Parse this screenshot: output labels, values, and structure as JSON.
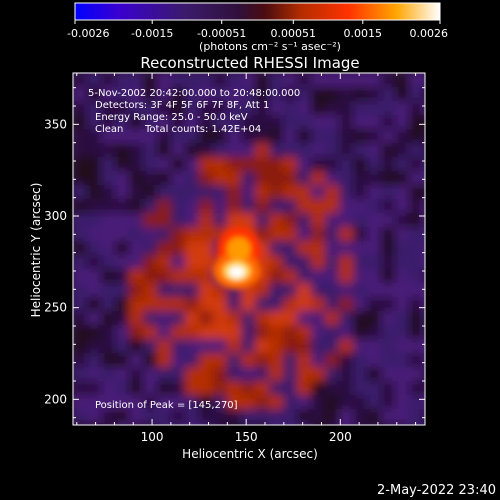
{
  "chart_data": {
    "type": "heatmap",
    "title": "Reconstructed RHESSI Image",
    "xlabel": "Heliocentric X (arcsec)",
    "ylabel": "Heliocentric Y (arcsec)",
    "xticks": [
      100,
      150,
      200
    ],
    "yticks": [
      200,
      250,
      300,
      350
    ],
    "xlim": [
      58,
      245
    ],
    "ylim": [
      186,
      378
    ],
    "colorbar": {
      "ticks": [
        "-0.0026",
        "-0.0015",
        "-0.00051",
        "0.00051",
        "0.0015",
        "0.0026"
      ],
      "units": "(photons cm⁻² s⁻¹ asec⁻²)",
      "range": [
        -0.0026,
        0.0026
      ],
      "colormap": [
        "#0000ff",
        "#000000",
        "#b42d00",
        "#ff3200",
        "#ffa500",
        "#ffffff"
      ]
    },
    "annotations": {
      "time_range": "5-Nov-2002 20:42:00.000 to 20:48:00.000",
      "detectors": "Detectors: 3F 4F 5F 6F 7F 8F, Att 1",
      "energy": "Energy Range: 25.0 - 50.0 keV",
      "method": "Clean",
      "counts": "Total counts: 1.42E+04",
      "peak": "Position of Peak = [145,270]"
    },
    "peak": {
      "x": 145,
      "y": 270
    },
    "footer_timestamp": "2-May-2022 23:40"
  }
}
